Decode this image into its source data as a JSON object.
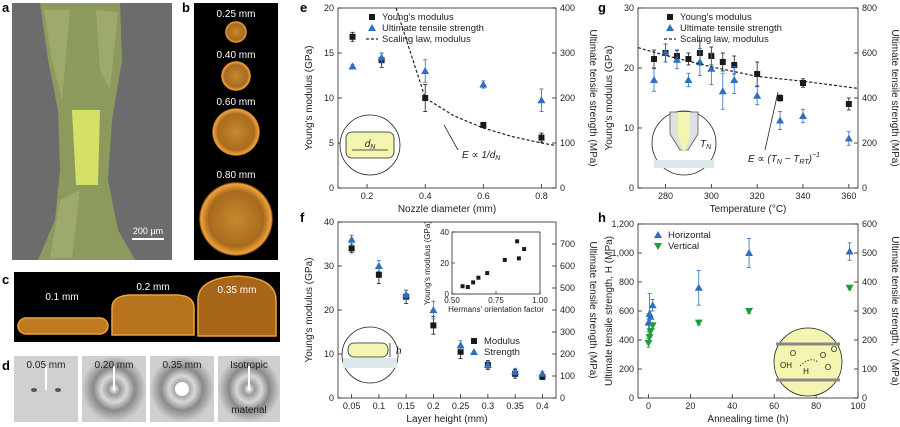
{
  "panel_letters": {
    "a": "a",
    "b": "b",
    "c": "c",
    "d": "d",
    "e": "e",
    "f": "f",
    "g": "g",
    "h": "h"
  },
  "images": {
    "a_scalebar": "200 µm",
    "b_labels": [
      "0.25 mm",
      "0.40 mm",
      "0.60 mm",
      "0.80 mm"
    ],
    "c_labels": [
      "0.1 mm",
      "0.2 mm",
      "0.35 mm"
    ],
    "d_labels": [
      "0.05 mm",
      "0.20 mm",
      "0.35 mm",
      "Isotropic",
      "material"
    ]
  },
  "colors": {
    "modulus": "#1a1a1a",
    "strength": "#2f6fc0",
    "vertical": "#1f9a3c",
    "inset_fill": "#f4f5b0",
    "fiber": "#c9d66a",
    "orange": "#e07a1e"
  },
  "chart_data": [
    {
      "id": "e",
      "type": "scatter",
      "xlabel": "Nozzle diameter (mm)",
      "ylabel": "Young's modulus (GPa)",
      "y2label": "Ultimate tensile strength (MPa)",
      "xlim": [
        0.1,
        0.85
      ],
      "ylim": [
        0,
        20
      ],
      "y2lim": [
        0,
        400
      ],
      "xticks": [
        0.2,
        0.4,
        0.6,
        0.8
      ],
      "yticks": [
        0,
        5,
        10,
        15,
        20
      ],
      "y2ticks": [
        0,
        100,
        200,
        300,
        400
      ],
      "legend": [
        "Young's modulus",
        "Ultimate tensile strength",
        "Scaling law, modulus"
      ],
      "annotation": "E ∝ 1/d",
      "annotation_sub": "N",
      "inset_label": "d",
      "inset_label_sub": "N",
      "series": [
        {
          "name": "Young's modulus",
          "axis": "left",
          "marker": "square",
          "x": [
            0.15,
            0.25,
            0.4,
            0.6,
            0.8
          ],
          "y": [
            16.8,
            14.2,
            10.0,
            7.0,
            5.6
          ],
          "err": [
            0.5,
            0.8,
            1.5,
            0.3,
            0.5
          ]
        },
        {
          "name": "Ultimate tensile strength",
          "axis": "right",
          "marker": "triangle",
          "x": [
            0.15,
            0.25,
            0.4,
            0.6,
            0.8
          ],
          "y": [
            270,
            290,
            260,
            230,
            195
          ],
          "err": [
            5,
            10,
            25,
            8,
            25
          ]
        },
        {
          "name": "Scaling law, modulus",
          "axis": "left",
          "marker": "dashed",
          "x": [
            0.3,
            0.4,
            0.5,
            0.6,
            0.7,
            0.8,
            0.85
          ],
          "y": [
            20.0,
            10.0,
            8.0,
            6.67,
            5.71,
            5.0,
            4.71
          ]
        }
      ]
    },
    {
      "id": "f",
      "type": "scatter",
      "xlabel": "Layer height (mm)",
      "ylabel": "Young's modulus (GPa)",
      "y2label": "Ultimate tensile strength (MPa)",
      "xlim": [
        0.025,
        0.425
      ],
      "ylim": [
        0,
        40
      ],
      "y2lim": [
        0,
        800
      ],
      "xticks": [
        0.05,
        0.1,
        0.15,
        0.2,
        0.25,
        0.3,
        0.35,
        0.4
      ],
      "yticks": [
        0,
        10,
        20,
        30,
        40
      ],
      "y2ticks": [
        0,
        100,
        200,
        300,
        400,
        500,
        600,
        700
      ],
      "legend": [
        "Modulus",
        "Strength"
      ],
      "inset_label": "h",
      "series": [
        {
          "name": "Modulus",
          "axis": "left",
          "marker": "square",
          "x": [
            0.05,
            0.1,
            0.15,
            0.2,
            0.25,
            0.3,
            0.35,
            0.4
          ],
          "y": [
            34,
            28,
            23,
            16.5,
            10.5,
            7.5,
            5.5,
            4.8
          ],
          "err": [
            1,
            2,
            1.5,
            2,
            1.5,
            1,
            1,
            0.5
          ]
        },
        {
          "name": "Strength",
          "axis": "right",
          "marker": "triangle",
          "x": [
            0.05,
            0.1,
            0.15,
            0.2,
            0.25,
            0.3,
            0.35,
            0.4
          ],
          "y": [
            720,
            600,
            470,
            400,
            240,
            150,
            120,
            110
          ],
          "err": [
            20,
            25,
            20,
            40,
            20,
            15,
            15,
            10
          ]
        }
      ],
      "inset": {
        "xlabel": "Hermans' orientation factor",
        "ylabel": "Young's modulus (GPa)",
        "xlim": [
          0.5,
          1.0
        ],
        "ylim": [
          0,
          40
        ],
        "xticks": [
          0.5,
          0.75,
          1.0
        ],
        "xticklabels": [
          "0.50",
          "0.75",
          "1.00"
        ],
        "yticks": [
          0,
          20,
          40
        ],
        "x": [
          0.56,
          0.59,
          0.62,
          0.65,
          0.7,
          0.8,
          0.87,
          0.88,
          0.91
        ],
        "y": [
          5,
          4.5,
          7.5,
          10.5,
          13.5,
          22,
          34,
          23,
          29
        ]
      }
    },
    {
      "id": "g",
      "type": "scatter",
      "xlabel": "Temperature (°C)",
      "ylabel": "Young's modulus (GPa)",
      "y2label": "Ultimate tensile strength (MPa)",
      "xlim": [
        268,
        364
      ],
      "ylim": [
        0,
        30
      ],
      "y2lim": [
        0,
        800
      ],
      "xticks": [
        280,
        300,
        320,
        340,
        360
      ],
      "yticks": [
        0,
        10,
        20,
        30
      ],
      "y2ticks": [
        0,
        200,
        400,
        600,
        800
      ],
      "legend": [
        "Young's modulus",
        "Ultimate tensile strength",
        "Scaling law, modulus"
      ],
      "annotation": "E ∝ (T",
      "annotation_sub": "N",
      "annotation_mid": " − T",
      "annotation_sub2": "RT",
      "annotation_end": ")",
      "annotation_sup": "−1",
      "inset_label": "T",
      "inset_label_sub": "N",
      "series": [
        {
          "name": "Young's modulus",
          "axis": "left",
          "marker": "square",
          "x": [
            275,
            280,
            285,
            290,
            295,
            300,
            305,
            310,
            320,
            330,
            340,
            360
          ],
          "y": [
            21.5,
            22.5,
            22.0,
            21.5,
            22.5,
            22.0,
            21.0,
            20.5,
            19.0,
            15.0,
            17.5,
            14.0
          ],
          "err": [
            1.5,
            1.5,
            1,
            1,
            2,
            1.5,
            1.5,
            1.5,
            2,
            0.5,
            0.7,
            1
          ]
        },
        {
          "name": "Ultimate tensile strength",
          "axis": "right",
          "marker": "triangle",
          "x": [
            275,
            280,
            285,
            290,
            295,
            300,
            305,
            310,
            320,
            330,
            340,
            360
          ],
          "y": [
            480,
            600,
            570,
            480,
            560,
            530,
            430,
            480,
            410,
            300,
            320,
            220
          ],
          "err": [
            50,
            40,
            40,
            30,
            60,
            70,
            80,
            60,
            40,
            40,
            30,
            30
          ]
        },
        {
          "name": "Scaling law, modulus",
          "axis": "left",
          "marker": "dashed",
          "x": [
            268,
            280,
            300,
            320,
            340,
            364
          ],
          "y": [
            23.4,
            22.1,
            20.2,
            18.6,
            17.8,
            16.6
          ]
        }
      ]
    },
    {
      "id": "h",
      "type": "scatter",
      "xlabel": "Annealing time (h)",
      "ylabel": "Ultimate tensile strength, H (MPa)",
      "y2label": "Ultimate tensile strength, V (MPa)",
      "xlim": [
        -5,
        100
      ],
      "ylim": [
        0,
        1200
      ],
      "y2lim": [
        0,
        600
      ],
      "xticks": [
        0,
        20,
        40,
        60,
        80,
        100
      ],
      "yticks": [
        0,
        200,
        400,
        600,
        800,
        1000,
        1200
      ],
      "yticklabels": [
        "0",
        "200",
        "400",
        "600",
        "800",
        "1,000",
        "1,200"
      ],
      "y2ticks": [
        0,
        100,
        200,
        300,
        400,
        500,
        600
      ],
      "legend": [
        "Horizontal",
        "Vertical"
      ],
      "inset_labels": [
        "O",
        "OH",
        "O",
        "O",
        "H",
        "O"
      ],
      "series": [
        {
          "name": "Horizontal",
          "axis": "left",
          "marker": "triangle",
          "x": [
            0,
            0.5,
            1,
            2,
            24,
            48,
            96
          ],
          "y": [
            520,
            580,
            560,
            640,
            760,
            1000,
            1010
          ],
          "err": [
            60,
            140,
            40,
            40,
            120,
            100,
            60
          ]
        },
        {
          "name": "Vertical",
          "axis": "right",
          "marker": "triangle-down",
          "x": [
            0,
            0.5,
            1,
            2,
            24,
            48,
            96
          ],
          "y": [
            190,
            210,
            230,
            250,
            260,
            300,
            380
          ],
          "err": [
            15,
            15,
            10,
            10,
            8,
            8,
            6
          ]
        }
      ]
    }
  ]
}
